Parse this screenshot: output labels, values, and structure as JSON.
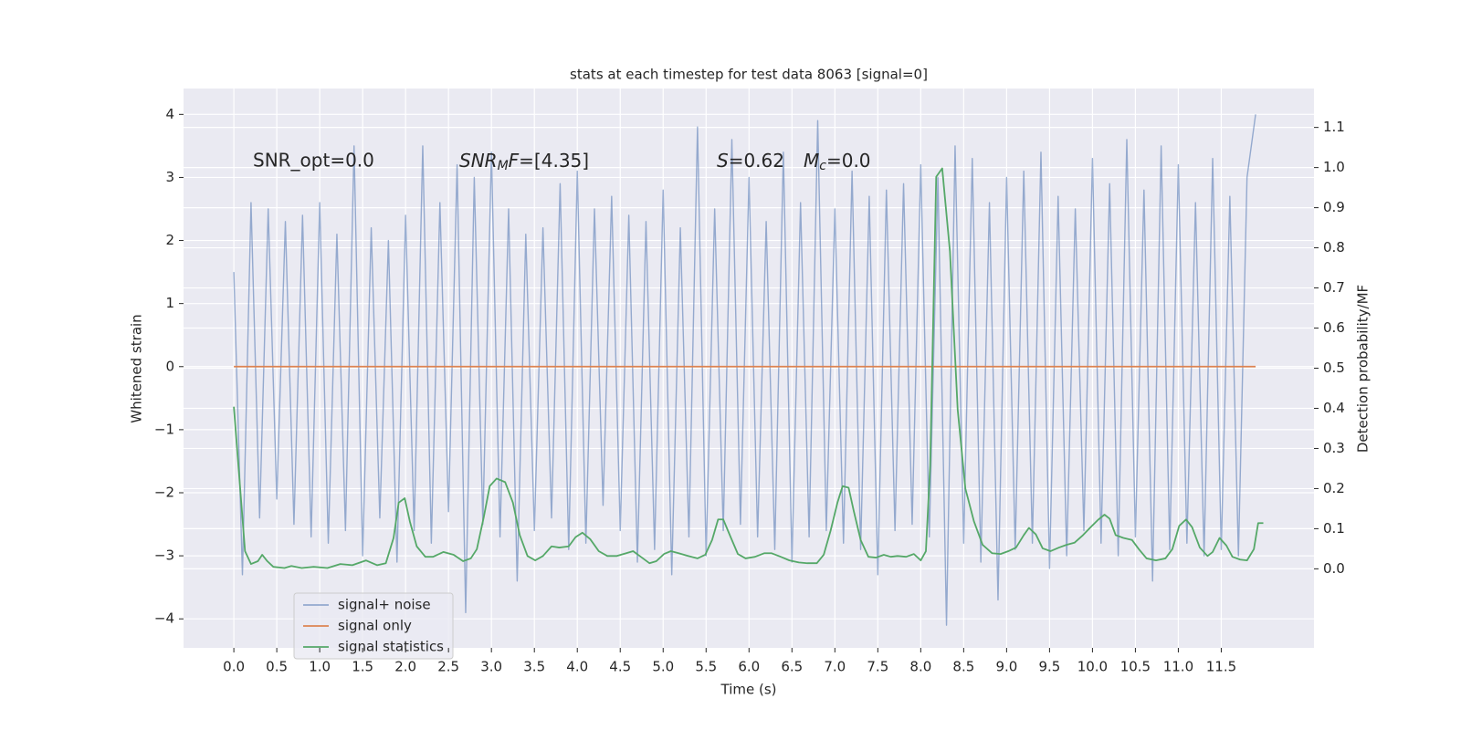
{
  "chart_data": {
    "type": "line",
    "title": "stats at each timestep for test data 8063 [signal=0]",
    "xlabel": "Time (s)",
    "ylabel": "Whitened strain",
    "y2label": "Detection probability/MF",
    "annotations": [
      [
        "SNR_opt=0.0"
      ],
      [
        "SNR",
        "M",
        "F",
        "=[4.35]"
      ],
      [
        "S",
        "=0.62"
      ],
      [
        "M",
        "c",
        "=0.0"
      ]
    ],
    "xlim": [
      -0.586,
      12.58
    ],
    "ylim": [
      -4.46,
      4.41
    ],
    "y2lim": [
      -0.197,
      1.197
    ],
    "xticks": [
      {
        "value": 0,
        "label": "0.0"
      },
      0.5,
      {
        "value": 1,
        "label": "1.0"
      },
      1.5,
      {
        "value": 2,
        "label": "2.0"
      },
      2.5,
      {
        "value": 3,
        "label": "3.0"
      },
      3.5,
      {
        "value": 4,
        "label": "4.0"
      },
      4.5,
      {
        "value": 5,
        "label": "5.0"
      },
      5.5,
      {
        "value": 6,
        "label": "6.0"
      },
      6.5,
      {
        "value": 7,
        "label": "7.0"
      },
      7.5,
      {
        "value": 8,
        "label": "8.0"
      },
      8.5,
      {
        "value": 9,
        "label": "9.0"
      },
      9.5,
      {
        "value": 10,
        "label": "10.0"
      },
      10.5,
      {
        "value": 11,
        "label": "11.0"
      },
      11.5
    ],
    "yticks": [
      {
        "value": -4,
        "label": "−4"
      },
      {
        "value": -3,
        "label": "−3"
      },
      {
        "value": -2,
        "label": "−2"
      },
      {
        "value": -1,
        "label": "−1"
      },
      0,
      1,
      2,
      3,
      4
    ],
    "y2ticks": [
      {
        "value": 0,
        "label": "0.0"
      },
      0.1,
      0.2,
      0.3,
      0.4,
      0.5,
      0.6,
      0.7,
      0.8,
      0.9,
      {
        "value": 1,
        "label": "1.0"
      },
      1.1
    ],
    "grid": true,
    "legend": "lower left",
    "series": [
      {
        "name": "signal+ noise",
        "color": "#4c72b0",
        "x": [
          0,
          0.1,
          0.2,
          0.3,
          0.4,
          0.5,
          0.6,
          0.7,
          0.8,
          0.9,
          1,
          1.1,
          1.2,
          1.3,
          1.4,
          1.5,
          1.6,
          1.7,
          1.8,
          1.9,
          2,
          2.1,
          2.2,
          2.3,
          2.4,
          2.5,
          2.6,
          2.7,
          2.8,
          2.9,
          3,
          3.1,
          3.2,
          3.3,
          3.4,
          3.5,
          3.6,
          3.7,
          3.8,
          3.9,
          4,
          4.1,
          4.2,
          4.3,
          4.4,
          4.5,
          4.6,
          4.7,
          4.8,
          4.9,
          5,
          5.1,
          5.2,
          5.3,
          5.4,
          5.5,
          5.6,
          5.7,
          5.8,
          5.9,
          6,
          6.1,
          6.2,
          6.3,
          6.4,
          6.5,
          6.6,
          6.7,
          6.8,
          6.9,
          7,
          7.1,
          7.2,
          7.3,
          7.4,
          7.5,
          7.6,
          7.7,
          7.8,
          7.9,
          8,
          8.1,
          8.2,
          8.3,
          8.4,
          8.5,
          8.6,
          8.7,
          8.8,
          8.9,
          9,
          9.1,
          9.2,
          9.3,
          9.4,
          9.5,
          9.6,
          9.7,
          9.8,
          9.9,
          10,
          10.1,
          10.2,
          10.3,
          10.4,
          10.5,
          10.6,
          10.7,
          10.8,
          10.9,
          11,
          11.1,
          11.2,
          11.3,
          11.4,
          11.5,
          11.6,
          11.7,
          11.8,
          11.9
        ],
        "values": [
          1.5,
          -3.3,
          2.6,
          -2.4,
          2.5,
          -2.1,
          2.3,
          -2.5,
          2.4,
          -2.7,
          2.6,
          -2.8,
          2.1,
          -2.6,
          3.5,
          -3.0,
          2.2,
          -2.4,
          2.0,
          -3.1,
          2.4,
          -2.6,
          3.5,
          -2.8,
          2.6,
          -2.3,
          3.2,
          -3.9,
          3.0,
          -2.5,
          3.4,
          -2.7,
          2.5,
          -3.4,
          2.1,
          -2.6,
          2.2,
          -2.4,
          2.9,
          -2.9,
          3.1,
          -2.8,
          2.5,
          -2.2,
          2.7,
          -2.6,
          2.4,
          -3.1,
          2.3,
          -2.9,
          2.8,
          -3.3,
          2.2,
          -2.7,
          3.8,
          -3.0,
          2.5,
          -2.6,
          3.6,
          -2.5,
          3.0,
          -2.7,
          2.3,
          -2.9,
          3.4,
          -3.1,
          2.6,
          -2.7,
          3.9,
          -2.6,
          2.5,
          -2.8,
          3.1,
          -2.9,
          2.7,
          -3.3,
          2.8,
          -2.6,
          2.9,
          -2.5,
          3.2,
          -2.7,
          3.0,
          -4.1,
          3.5,
          -2.8,
          3.3,
          -3.1,
          2.6,
          -3.7,
          3.0,
          -2.9,
          3.1,
          -2.8,
          3.4,
          -3.2,
          2.7,
          -3.0,
          2.5,
          -2.6,
          3.3,
          -2.8,
          2.9,
          -3.0,
          3.6,
          -2.7,
          2.8,
          -3.4,
          3.5,
          -2.9,
          3.2,
          -2.8,
          2.6,
          -3.0,
          3.3,
          -2.9,
          2.7,
          -3.0,
          3.0,
          4.0
        ]
      },
      {
        "name": "signal only",
        "color": "#dd8452",
        "x": [
          0,
          11.9
        ],
        "values": [
          0,
          0
        ]
      },
      {
        "name": "signal statistics",
        "color": "#55a868",
        "axis": "y2",
        "x": [
          0,
          0.13,
          0.2,
          0.28,
          0.33,
          0.39,
          0.46,
          0.59,
          0.67,
          0.79,
          0.93,
          1.09,
          1.24,
          1.38,
          1.54,
          1.67,
          1.77,
          1.86,
          1.92,
          1.99,
          2.05,
          2.13,
          2.23,
          2.32,
          2.44,
          2.56,
          2.67,
          2.76,
          2.83,
          2.91,
          2.98,
          3.06,
          3.16,
          3.25,
          3.33,
          3.42,
          3.51,
          3.6,
          3.7,
          3.79,
          3.9,
          3.98,
          4.06,
          4.15,
          4.25,
          4.35,
          4.46,
          4.57,
          4.65,
          4.74,
          4.84,
          4.92,
          5.01,
          5.09,
          5.18,
          5.29,
          5.4,
          5.49,
          5.57,
          5.64,
          5.7,
          5.79,
          5.87,
          5.96,
          6.07,
          6.18,
          6.26,
          6.37,
          6.47,
          6.58,
          6.68,
          6.79,
          6.87,
          6.95,
          7.03,
          7.09,
          7.16,
          7.22,
          7.3,
          7.39,
          7.48,
          7.57,
          7.65,
          7.73,
          7.83,
          7.92,
          8.0,
          8.06,
          8.11,
          8.18,
          8.25,
          8.34,
          8.43,
          8.52,
          8.62,
          8.72,
          8.83,
          8.93,
          9.02,
          9.11,
          9.2,
          9.26,
          9.34,
          9.42,
          9.51,
          9.61,
          9.7,
          9.79,
          9.89,
          9.98,
          10.07,
          10.14,
          10.2,
          10.27,
          10.36,
          10.46,
          10.54,
          10.63,
          10.74,
          10.85,
          10.93,
          11.01,
          11.09,
          11.16,
          11.25,
          11.34,
          11.4,
          11.48,
          11.56,
          11.63,
          11.72,
          11.8,
          11.88,
          11.93,
          11.99
        ],
        "values": [
          0.404,
          0.044,
          0.012,
          0.019,
          0.035,
          0.019,
          0.005,
          0.002,
          0.007,
          0.002,
          0.005,
          0.002,
          0.012,
          0.009,
          0.021,
          0.009,
          0.014,
          0.077,
          0.165,
          0.176,
          0.118,
          0.056,
          0.03,
          0.03,
          0.042,
          0.035,
          0.019,
          0.026,
          0.049,
          0.128,
          0.206,
          0.225,
          0.216,
          0.165,
          0.084,
          0.032,
          0.021,
          0.032,
          0.056,
          0.053,
          0.056,
          0.079,
          0.09,
          0.074,
          0.044,
          0.032,
          0.032,
          0.039,
          0.044,
          0.03,
          0.014,
          0.019,
          0.037,
          0.044,
          0.039,
          0.032,
          0.026,
          0.035,
          0.072,
          0.123,
          0.123,
          0.077,
          0.037,
          0.026,
          0.03,
          0.039,
          0.039,
          0.03,
          0.021,
          0.016,
          0.014,
          0.014,
          0.035,
          0.095,
          0.165,
          0.206,
          0.202,
          0.144,
          0.072,
          0.03,
          0.028,
          0.035,
          0.03,
          0.032,
          0.03,
          0.037,
          0.021,
          0.044,
          0.258,
          0.977,
          0.998,
          0.791,
          0.397,
          0.2,
          0.118,
          0.06,
          0.039,
          0.037,
          0.044,
          0.053,
          0.084,
          0.102,
          0.086,
          0.051,
          0.044,
          0.053,
          0.06,
          0.065,
          0.084,
          0.104,
          0.123,
          0.135,
          0.125,
          0.084,
          0.077,
          0.072,
          0.049,
          0.026,
          0.021,
          0.026,
          0.049,
          0.107,
          0.123,
          0.104,
          0.053,
          0.032,
          0.042,
          0.077,
          0.058,
          0.03,
          0.023,
          0.021,
          0.049,
          0.114,
          0.114
        ]
      }
    ]
  }
}
